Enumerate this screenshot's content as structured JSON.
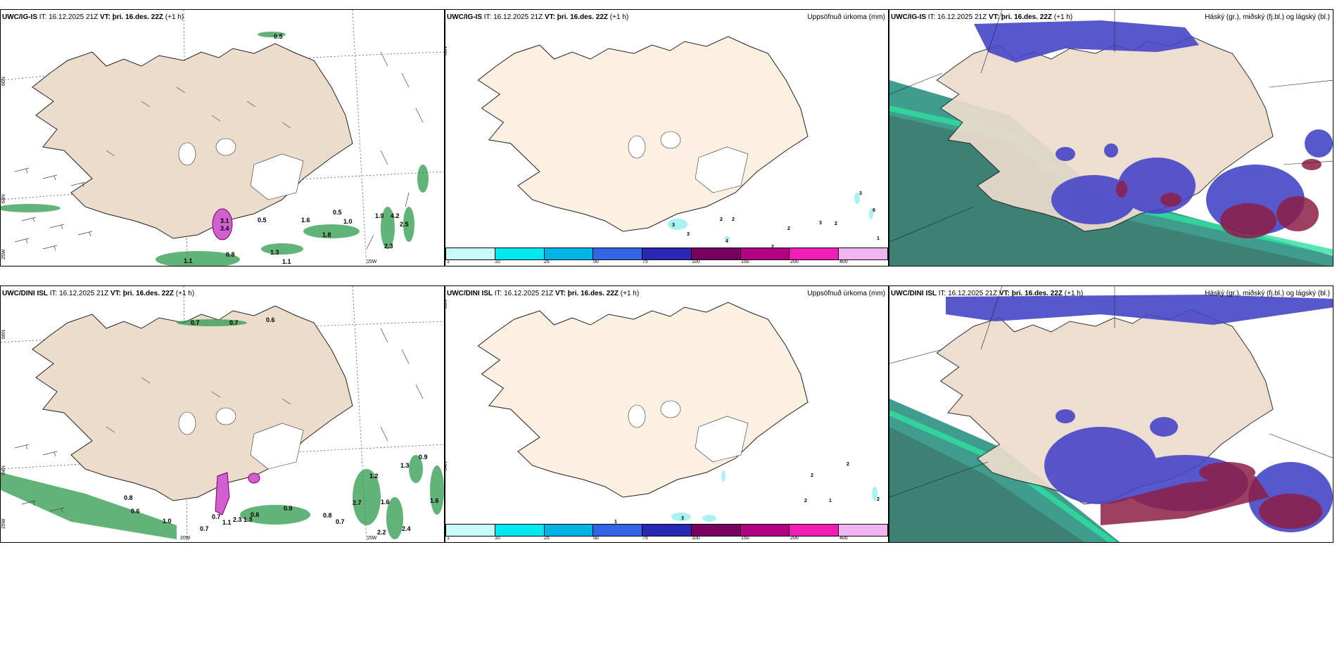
{
  "rows": [
    {
      "model": "UWC/IG-IS",
      "it_label": "IT:",
      "it_value": "16.12.2025 21Z",
      "vt_label": "VT:",
      "vt_value": "þri. 16.des. 22Z",
      "lead": "(+1 h)",
      "precip_title": "Uppsöfnuð úrkoma (mm)",
      "cloud_title": "Háský (gr.), miðský (fj.bl.) og lágský (bl.)",
      "lat_top": "66N",
      "lat_mid": "64N",
      "lon_left": "25W",
      "lon_right": "15W",
      "lon_mid": "",
      "wind_values": [
        "0.5",
        "3.1",
        "3.4",
        "0.5",
        "1.6",
        "0.5",
        "1.0",
        "1.0",
        "4.2",
        "2.5",
        "1.8",
        "2.3",
        "0.8",
        "1.3",
        "1.1",
        "1.1"
      ],
      "precip_values": [
        "3",
        "6",
        "3",
        "3",
        "2",
        "2",
        "2",
        "3",
        "2",
        "4",
        "2",
        "1"
      ]
    },
    {
      "model": "UWC/DINI ISL",
      "it_label": "IT:",
      "it_value": "16.12.2025 21Z",
      "vt_label": "VT:",
      "vt_value": "þri. 16.des. 22Z",
      "lead": "(+1 h)",
      "precip_title": "Uppsöfnuð úrkoma (mm)",
      "cloud_title": "Háský (gr.), miðský (fj.bl.) og lágský (bl.)",
      "lat_top": "66N",
      "lat_mid": "64N",
      "lon_left": "25W",
      "lon_right": "15W",
      "lon_mid": "20W",
      "wind_values": [
        "0.7",
        "0.7",
        "0.6",
        "0.9",
        "1.2",
        "1.3",
        "0.8",
        "0.6",
        "0.7",
        "1.0",
        "0.7",
        "1.1",
        "2.3",
        "1.3",
        "0.6",
        "0.9",
        "0.8",
        "0.7",
        "2.7",
        "1.6",
        "1.6",
        "2.2",
        "2.4"
      ],
      "precip_values": [
        "2",
        "2",
        "2",
        "1",
        "2",
        "1",
        "3"
      ]
    }
  ],
  "colorbar": {
    "ticks": [
      "1",
      "10",
      "25",
      "50",
      "75",
      "100",
      "150",
      "200",
      "400"
    ],
    "colors": [
      "#c8fafa",
      "#00e8f0",
      "#00b4e6",
      "#3264e6",
      "#2828b4",
      "#7a0060",
      "#b40082",
      "#f01eb4",
      "#f0b4f0"
    ]
  },
  "colors": {
    "land": "#ecdccc",
    "land_light": "#fcf0e2",
    "snow": "#ffffff",
    "precip_green": "#2d9a4c",
    "precip_pink": "#d060d0",
    "cloud_high": "#1e8c7a",
    "cloud_mid": "#4646c8",
    "cloud_low": "#8c1e46"
  }
}
